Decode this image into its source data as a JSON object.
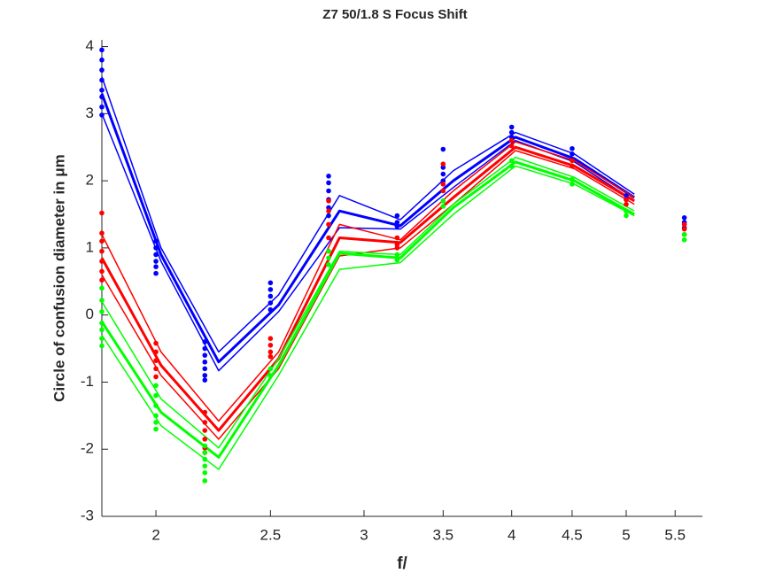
{
  "chart_data": {
    "type": "line",
    "title": "Z7 50/1.8 S Focus Shift",
    "xlabel": "f/",
    "ylabel": "Circle of confusion diameter in μm",
    "xscale": "log",
    "xlim": [
      1.8,
      5.8
    ],
    "xticks": [
      2,
      2.5,
      3,
      3.5,
      4,
      4.5,
      5,
      5.5
    ],
    "ylim": [
      -3,
      4.1
    ],
    "yticks": [
      -3,
      -2,
      -1,
      0,
      1,
      2,
      3,
      4
    ],
    "grid": false,
    "series": [
      {
        "color": "#0000ff",
        "mode": "lines",
        "width": 3,
        "x": [
          1.8,
          2.02,
          2.26,
          2.54,
          2.86,
          3.22,
          3.57,
          4.03,
          4.52,
          5.08
        ],
        "values": [
          3.3,
          0.9,
          -0.7,
          0.15,
          1.55,
          1.33,
          2.0,
          2.65,
          2.33,
          1.75
        ]
      },
      {
        "color": "#0000ff",
        "mode": "lines",
        "width": 1.5,
        "x": [
          1.8,
          2.02,
          2.26,
          2.54,
          2.86,
          3.22,
          3.57,
          4.03,
          4.52,
          5.08
        ],
        "values": [
          3.55,
          1.0,
          -0.55,
          0.3,
          1.78,
          1.42,
          2.15,
          2.72,
          2.4,
          1.8
        ]
      },
      {
        "color": "#0000ff",
        "mode": "lines",
        "width": 1.5,
        "x": [
          1.8,
          2.02,
          2.26,
          2.54,
          2.86,
          3.22,
          3.57,
          4.03,
          4.52,
          5.08
        ],
        "values": [
          3.0,
          0.8,
          -0.83,
          0.05,
          1.3,
          1.28,
          1.9,
          2.6,
          2.28,
          1.7
        ]
      },
      {
        "color": "#ff0000",
        "mode": "lines",
        "width": 3,
        "x": [
          1.8,
          2.02,
          2.26,
          2.54,
          2.86,
          3.22,
          3.57,
          4.03,
          4.52,
          5.08
        ],
        "values": [
          0.85,
          -0.75,
          -1.72,
          -0.65,
          1.15,
          1.08,
          1.75,
          2.5,
          2.22,
          1.7
        ]
      },
      {
        "color": "#ff0000",
        "mode": "lines",
        "width": 1.5,
        "x": [
          1.8,
          2.02,
          2.26,
          2.54,
          2.86,
          3.22,
          3.57,
          4.03,
          4.52,
          5.08
        ],
        "values": [
          1.2,
          -0.55,
          -1.58,
          -0.55,
          1.35,
          1.12,
          1.85,
          2.58,
          2.3,
          1.75
        ]
      },
      {
        "color": "#ff0000",
        "mode": "lines",
        "width": 1.5,
        "x": [
          1.8,
          2.02,
          2.26,
          2.54,
          2.86,
          3.22,
          3.57,
          4.03,
          4.52,
          5.08
        ],
        "values": [
          0.6,
          -0.9,
          -1.85,
          -0.8,
          0.88,
          1.0,
          1.65,
          2.45,
          2.18,
          1.65
        ]
      },
      {
        "color": "#00ff00",
        "mode": "lines",
        "width": 3,
        "x": [
          1.8,
          2.02,
          2.26,
          2.54,
          2.86,
          3.22,
          3.57,
          4.03,
          4.52,
          5.08
        ],
        "values": [
          -0.1,
          -1.45,
          -2.12,
          -0.75,
          0.92,
          0.85,
          1.6,
          2.28,
          2.0,
          1.5
        ]
      },
      {
        "color": "#00ff00",
        "mode": "lines",
        "width": 1.5,
        "x": [
          1.8,
          2.02,
          2.26,
          2.54,
          2.86,
          3.22,
          3.57,
          4.03,
          4.52,
          5.08
        ],
        "values": [
          0.2,
          -1.25,
          -1.98,
          -0.65,
          0.95,
          0.9,
          1.65,
          2.35,
          2.05,
          1.55
        ]
      },
      {
        "color": "#00ff00",
        "mode": "lines",
        "width": 1.5,
        "x": [
          1.8,
          2.02,
          2.26,
          2.54,
          2.86,
          3.22,
          3.57,
          4.03,
          4.52,
          5.08
        ],
        "values": [
          -0.3,
          -1.65,
          -2.3,
          -0.9,
          0.68,
          0.78,
          1.5,
          2.22,
          1.95,
          1.48
        ]
      },
      {
        "color": "#0000ff",
        "mode": "markers",
        "x": [
          1.8,
          1.8,
          1.8,
          1.8,
          1.8,
          1.8,
          1.8,
          1.8,
          2,
          2,
          2,
          2,
          2,
          2,
          2.2,
          2.2,
          2.2,
          2.2,
          2.2,
          2.2,
          2.2,
          2.5,
          2.5,
          2.5,
          2.5,
          2.5,
          2.8,
          2.8,
          2.8,
          2.8,
          2.8,
          2.8,
          3.2,
          3.2,
          3.2,
          3.5,
          3.5,
          3.5,
          3.5,
          4,
          4,
          4,
          4.5,
          4.5,
          5,
          5,
          5.6,
          5.6,
          5.6
        ],
        "values": [
          3.95,
          3.8,
          3.65,
          3.5,
          3.35,
          3.25,
          3.1,
          2.98,
          1.1,
          1.0,
          0.9,
          0.8,
          0.72,
          0.62,
          -0.4,
          -0.5,
          -0.6,
          -0.7,
          -0.8,
          -0.9,
          -0.97,
          0.48,
          0.38,
          0.28,
          0.18,
          0.08,
          2.07,
          1.97,
          1.85,
          1.72,
          1.6,
          1.48,
          1.48,
          1.38,
          1.32,
          2.47,
          2.2,
          2.1,
          2.0,
          2.8,
          2.72,
          2.65,
          2.48,
          2.4,
          1.78,
          1.72,
          1.45,
          1.38,
          1.3
        ]
      },
      {
        "color": "#ff0000",
        "mode": "markers",
        "x": [
          1.8,
          1.8,
          1.8,
          1.8,
          1.8,
          1.8,
          1.8,
          2,
          2,
          2,
          2,
          2,
          2.2,
          2.2,
          2.2,
          2.2,
          2.2,
          2.2,
          2.5,
          2.5,
          2.5,
          2.5,
          2.8,
          2.8,
          2.8,
          2.8,
          2.8,
          3.2,
          3.2,
          3.2,
          3.5,
          3.5,
          3.5,
          4,
          4,
          4.5,
          4.5,
          5,
          5,
          5.6,
          5.6,
          5.6
        ],
        "values": [
          1.52,
          1.22,
          1.1,
          0.95,
          0.8,
          0.65,
          0.52,
          -0.42,
          -0.55,
          -0.68,
          -0.8,
          -0.92,
          -1.45,
          -1.6,
          -1.72,
          -1.85,
          -1.98,
          -2.05,
          -0.35,
          -0.45,
          -0.55,
          -0.62,
          1.7,
          1.55,
          1.35,
          1.15,
          0.95,
          1.15,
          1.05,
          1.0,
          2.25,
          1.95,
          1.85,
          2.6,
          2.52,
          2.3,
          2.22,
          1.72,
          1.65,
          1.35,
          1.28,
          1.2
        ]
      },
      {
        "color": "#00ff00",
        "mode": "markers",
        "x": [
          1.8,
          1.8,
          1.8,
          1.8,
          1.8,
          1.8,
          1.8,
          2,
          2,
          2,
          2,
          2,
          2,
          2.2,
          2.2,
          2.2,
          2.2,
          2.2,
          2.2,
          2.5,
          2.5,
          2.8,
          2.8,
          2.8,
          3.2,
          3.2,
          3.5,
          3.5,
          4,
          4,
          4.5,
          4.5,
          5,
          5,
          5.6,
          5.6
        ],
        "values": [
          0.4,
          0.22,
          0.05,
          -0.12,
          -0.22,
          -0.35,
          -0.46,
          -1.05,
          -1.2,
          -1.35,
          -1.5,
          -1.6,
          -1.7,
          -1.95,
          -2.05,
          -2.15,
          -2.25,
          -2.35,
          -2.47,
          -0.8,
          -0.9,
          0.95,
          0.85,
          0.75,
          0.9,
          0.82,
          1.7,
          1.62,
          2.3,
          2.22,
          2.02,
          1.95,
          1.55,
          1.48,
          1.2,
          1.12
        ]
      }
    ]
  }
}
